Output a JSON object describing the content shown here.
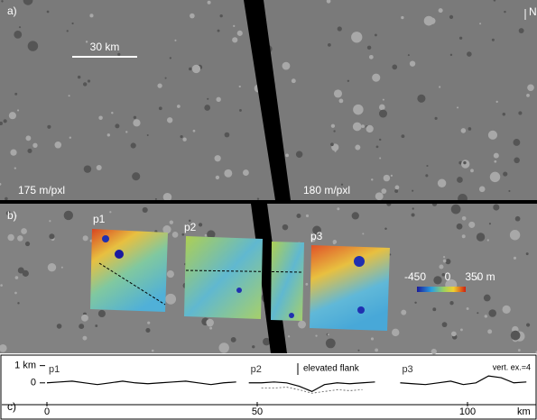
{
  "panel_a": {
    "label": "a)",
    "scale_bar": "30 km",
    "north": "N",
    "resolution_left": "175 m/pxl",
    "resolution_right": "180 m/pxl"
  },
  "panel_b": {
    "label": "b)",
    "profile_labels": [
      "p1",
      "p2",
      "p3"
    ],
    "colorbar_labels": [
      "-450",
      "0",
      "350 m"
    ]
  },
  "chart_data": {
    "type": "line",
    "label": "c)",
    "x_label": "km",
    "annotations": [
      "elevated flank",
      "vert. ex.=4"
    ],
    "x": [
      0,
      3,
      6,
      9,
      12,
      15,
      18,
      21,
      24,
      27,
      30,
      33,
      36,
      39,
      42,
      45,
      48,
      51,
      54,
      57,
      60,
      63,
      66,
      69,
      72,
      75,
      78,
      81,
      84,
      87,
      90,
      93,
      96,
      99,
      102,
      105,
      108,
      111,
      114
    ],
    "series": [
      {
        "name": "p1",
        "color": "#000",
        "values": [
          0,
          0.05,
          0.1,
          0,
          -0.1,
          0,
          0.1,
          0,
          -0.05,
          0,
          0.05,
          0.1,
          0,
          -0.1,
          0,
          0.05,
          null,
          null,
          null,
          null,
          null,
          null,
          null,
          null,
          null,
          null,
          null,
          null,
          null,
          null,
          null,
          null,
          null,
          null,
          null,
          null,
          null,
          null,
          null
        ]
      },
      {
        "name": "p2",
        "color": "#000",
        "values": [
          null,
          null,
          null,
          null,
          null,
          null,
          null,
          null,
          null,
          null,
          null,
          null,
          null,
          null,
          null,
          null,
          0,
          0,
          0.05,
          0,
          -0.2,
          -0.5,
          -0.1,
          0,
          -0.05,
          0,
          0.05,
          null,
          null,
          null,
          null,
          null,
          null,
          null,
          null,
          null,
          null,
          null,
          null
        ]
      },
      {
        "name": "p3",
        "color": "#000",
        "values": [
          null,
          null,
          null,
          null,
          null,
          null,
          null,
          null,
          null,
          null,
          null,
          null,
          null,
          null,
          null,
          null,
          null,
          null,
          null,
          null,
          null,
          null,
          null,
          null,
          null,
          null,
          null,
          null,
          0,
          -0.05,
          -0.1,
          0,
          0.1,
          -0.1,
          0,
          0.4,
          0.3,
          0,
          0.05
        ]
      },
      {
        "color": "#555",
        "dash": true,
        "values": [
          null,
          null,
          null,
          null,
          null,
          null,
          null,
          null,
          null,
          null,
          null,
          null,
          null,
          null,
          null,
          null,
          null,
          -0.3,
          -0.3,
          -0.25,
          -0.4,
          -0.6,
          -0.5,
          -0.4,
          -0.45,
          -0.4,
          null,
          null,
          null,
          null,
          null,
          null,
          null,
          null,
          null,
          null,
          null,
          null,
          null
        ]
      }
    ],
    "xlim": [
      0,
      114
    ],
    "xticks": [
      0,
      50,
      100
    ],
    "ylim": [
      -0.9,
      1.4
    ],
    "yticks": [
      {
        "value": 1,
        "label": "1 km"
      },
      0
    ]
  }
}
